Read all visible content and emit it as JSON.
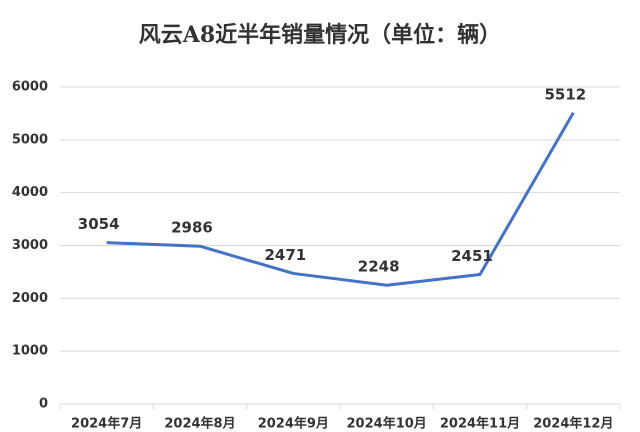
{
  "chart_data": {
    "type": "line",
    "title": "风云A8近半年销量情况（单位：辆）",
    "categories": [
      "2024年7月",
      "2024年8月",
      "2024年9月",
      "2024年10月",
      "2024年11月",
      "2024年12月"
    ],
    "values": [
      3054,
      2986,
      2471,
      2248,
      2451,
      5512
    ],
    "color": "#4472c4",
    "ylim": [
      0,
      6000
    ],
    "yticks": [
      0,
      1000,
      2000,
      3000,
      4000,
      5000,
      6000
    ],
    "grid": true
  }
}
